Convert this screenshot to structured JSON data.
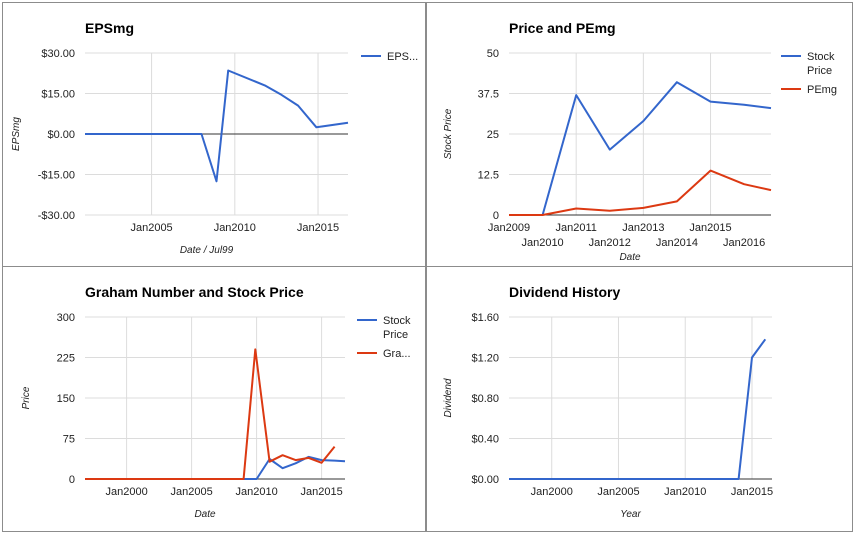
{
  "colors": {
    "blue": "#3366cc",
    "red": "#dc3912",
    "grid": "#dcdcdc",
    "zero": "#333333"
  },
  "chart_data": [
    {
      "id": "eps",
      "type": "line",
      "title": "EPSmg",
      "xlabel": "Date / Jul99",
      "ylabel": "EPSmg",
      "ylim": [
        -30,
        30
      ],
      "xlim": [
        2001.0,
        2016.8
      ],
      "yticks": [
        {
          "v": 30,
          "label": "$30.00"
        },
        {
          "v": 15,
          "label": "$15.00"
        },
        {
          "v": 0,
          "label": "$0.00"
        },
        {
          "v": -15,
          "label": "-$15.00"
        },
        {
          "v": -30,
          "label": "-$30.00"
        }
      ],
      "xticks": [
        {
          "v": 2005,
          "label": "Jan2005",
          "row": 0
        },
        {
          "v": 2010,
          "label": "Jan2010",
          "row": 0
        },
        {
          "v": 2015,
          "label": "Jan2015",
          "row": 0
        }
      ],
      "vgrid": [
        2005,
        2010,
        2015
      ],
      "zero_line": true,
      "legend": "right",
      "series": [
        {
          "name": "EPS...",
          "color": "#3366cc",
          "points": [
            [
              2001.0,
              0
            ],
            [
              2008.0,
              0
            ],
            [
              2008.9,
              -17.5
            ],
            [
              2009.6,
              23.5
            ],
            [
              2011.8,
              18
            ],
            [
              2012.8,
              14.5
            ],
            [
              2013.8,
              10.5
            ],
            [
              2014.9,
              2.5
            ],
            [
              2016.8,
              4.2
            ]
          ]
        }
      ]
    },
    {
      "id": "pe",
      "type": "line",
      "title": "Price and PEmg",
      "xlabel": "Date",
      "ylabel": "Stock Price",
      "ylim": [
        0,
        50
      ],
      "xlim": [
        2009.0,
        2016.8
      ],
      "yticks": [
        {
          "v": 50,
          "label": "50"
        },
        {
          "v": 37.5,
          "label": "37.5"
        },
        {
          "v": 25,
          "label": "25"
        },
        {
          "v": 12.5,
          "label": "12.5"
        },
        {
          "v": 0,
          "label": "0"
        }
      ],
      "xticks": [
        {
          "v": 2009,
          "label": "Jan2009",
          "row": 0
        },
        {
          "v": 2010,
          "label": "Jan2010",
          "row": 1
        },
        {
          "v": 2011,
          "label": "Jan2011",
          "row": 0
        },
        {
          "v": 2012,
          "label": "Jan2012",
          "row": 1
        },
        {
          "v": 2013,
          "label": "Jan2013",
          "row": 0
        },
        {
          "v": 2014,
          "label": "Jan2014",
          "row": 1
        },
        {
          "v": 2015,
          "label": "Jan2015",
          "row": 0
        },
        {
          "v": 2016,
          "label": "Jan2016",
          "row": 1
        }
      ],
      "vgrid": [
        2011,
        2013,
        2015
      ],
      "zero_line": false,
      "legend": "right",
      "series": [
        {
          "name": "Stock Price",
          "color": "#3366cc",
          "points": [
            [
              2009.0,
              0
            ],
            [
              2010.0,
              0
            ],
            [
              2011.0,
              37
            ],
            [
              2012.0,
              20.2
            ],
            [
              2013.0,
              29
            ],
            [
              2014.0,
              41
            ],
            [
              2015.0,
              35
            ],
            [
              2016.0,
              34
            ],
            [
              2016.8,
              33
            ]
          ]
        },
        {
          "name": "PEmg",
          "color": "#dc3912",
          "points": [
            [
              2009.0,
              0
            ],
            [
              2010.0,
              0
            ],
            [
              2011.0,
              2
            ],
            [
              2012.0,
              1.3
            ],
            [
              2013.0,
              2.2
            ],
            [
              2014.0,
              4.2
            ],
            [
              2015.0,
              13.7
            ],
            [
              2016.0,
              9.5
            ],
            [
              2016.8,
              7.7
            ]
          ]
        }
      ]
    },
    {
      "id": "graham",
      "type": "line",
      "title": "Graham Number and Stock Price",
      "xlabel": "Date",
      "ylabel": "Price",
      "ylim": [
        0,
        300
      ],
      "xlim": [
        1996.8,
        2016.8
      ],
      "yticks": [
        {
          "v": 300,
          "label": "300"
        },
        {
          "v": 225,
          "label": "225"
        },
        {
          "v": 150,
          "label": "150"
        },
        {
          "v": 75,
          "label": "75"
        },
        {
          "v": 0,
          "label": "0"
        }
      ],
      "xticks": [
        {
          "v": 2000,
          "label": "Jan2000",
          "row": 0
        },
        {
          "v": 2005,
          "label": "Jan2005",
          "row": 0
        },
        {
          "v": 2010,
          "label": "Jan2010",
          "row": 0
        },
        {
          "v": 2015,
          "label": "Jan2015",
          "row": 0
        }
      ],
      "vgrid": [
        2000,
        2005,
        2010,
        2015
      ],
      "zero_line": false,
      "legend": "right",
      "series": [
        {
          "name": "Stock Price",
          "color": "#3366cc",
          "points": [
            [
              1996.8,
              0
            ],
            [
              2010.0,
              0
            ],
            [
              2011.0,
              37
            ],
            [
              2012.0,
              20
            ],
            [
              2013.0,
              29
            ],
            [
              2014.0,
              41
            ],
            [
              2015.0,
              35
            ],
            [
              2016.0,
              34
            ],
            [
              2016.8,
              33
            ]
          ]
        },
        {
          "name": "Gra...",
          "color": "#dc3912",
          "points": [
            [
              1996.8,
              0
            ],
            [
              2009.0,
              0
            ],
            [
              2009.9,
              240
            ],
            [
              2011.0,
              32
            ],
            [
              2012.0,
              44
            ],
            [
              2013.0,
              35
            ],
            [
              2014.0,
              39
            ],
            [
              2015.0,
              30
            ],
            [
              2016.0,
              60
            ]
          ]
        }
      ]
    },
    {
      "id": "dividend",
      "type": "line",
      "title": "Dividend History",
      "xlabel": "Year",
      "ylabel": "Dividend",
      "ylim": [
        0,
        1.6
      ],
      "xlim": [
        1996.8,
        2016.5
      ],
      "yticks": [
        {
          "v": 1.6,
          "label": "$1.60"
        },
        {
          "v": 1.2,
          "label": "$1.20"
        },
        {
          "v": 0.8,
          "label": "$0.80"
        },
        {
          "v": 0.4,
          "label": "$0.40"
        },
        {
          "v": 0,
          "label": "$0.00"
        }
      ],
      "xticks": [
        {
          "v": 2000,
          "label": "Jan2000",
          "row": 0
        },
        {
          "v": 2005,
          "label": "Jan2005",
          "row": 0
        },
        {
          "v": 2010,
          "label": "Jan2010",
          "row": 0
        },
        {
          "v": 2015,
          "label": "Jan2015",
          "row": 0
        }
      ],
      "vgrid": [
        2000,
        2005,
        2010,
        2015
      ],
      "zero_line": false,
      "legend": "none",
      "series": [
        {
          "name": "Dividend",
          "color": "#3366cc",
          "points": [
            [
              1996.8,
              0
            ],
            [
              2014.0,
              0
            ],
            [
              2015.0,
              1.2
            ],
            [
              2016.0,
              1.38
            ]
          ]
        }
      ]
    }
  ]
}
